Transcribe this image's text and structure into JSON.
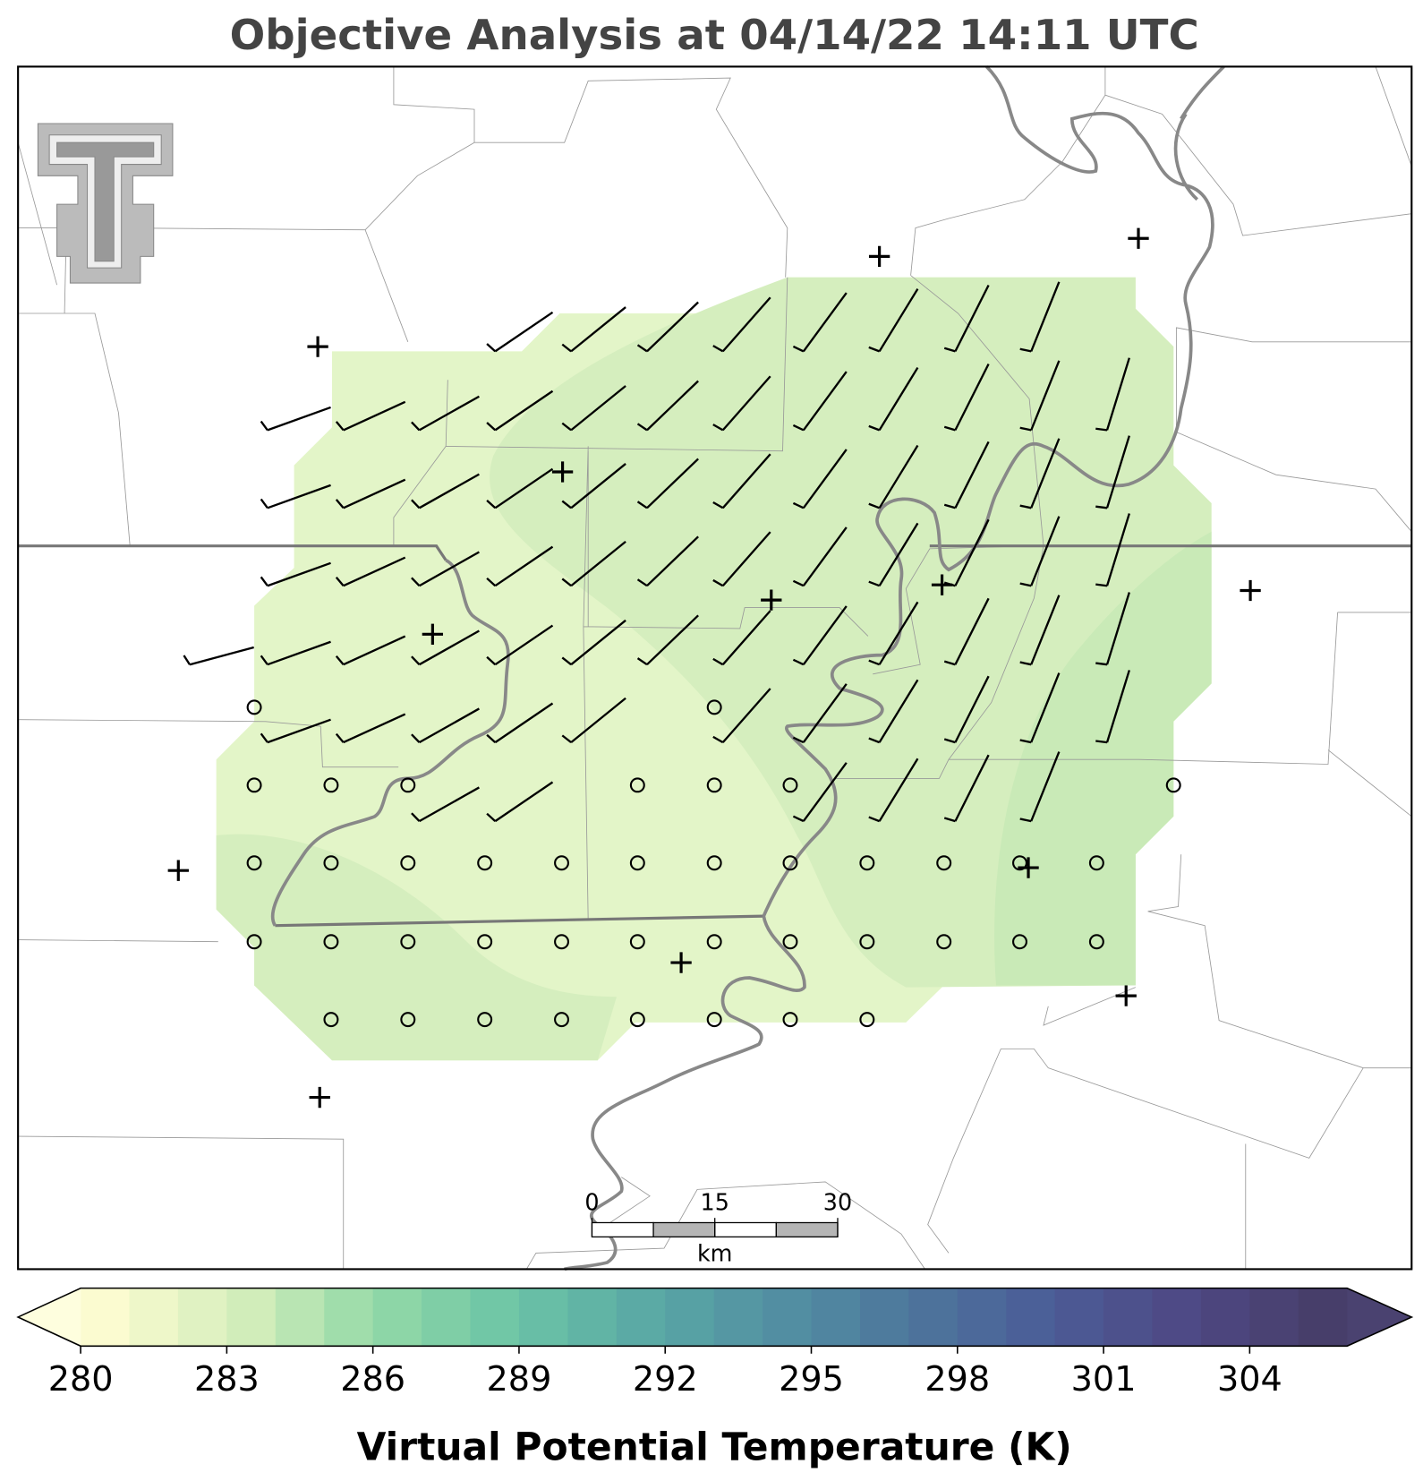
{
  "title": "Objective Analysis at 04/14/22 14:11 UTC",
  "map": {
    "scale_bar": {
      "ticks": [
        0,
        15,
        30
      ],
      "unit": "km"
    }
  },
  "colorbar": {
    "label": "Virtual Potential Temperature (K)",
    "range": [
      280,
      306
    ],
    "step": 1,
    "ticks": [
      280,
      283,
      286,
      289,
      292,
      295,
      298,
      301,
      304
    ],
    "colors": [
      "#fbfbd0",
      "#d6efbc",
      "#93d9a7",
      "#6cc4a6",
      "#5aa9a5",
      "#528fa2",
      "#4d759c",
      "#4b5c97",
      "#4e4884",
      "#473e6a"
    ],
    "under_color": "#fefede",
    "over_color": "#4a4270"
  }
}
